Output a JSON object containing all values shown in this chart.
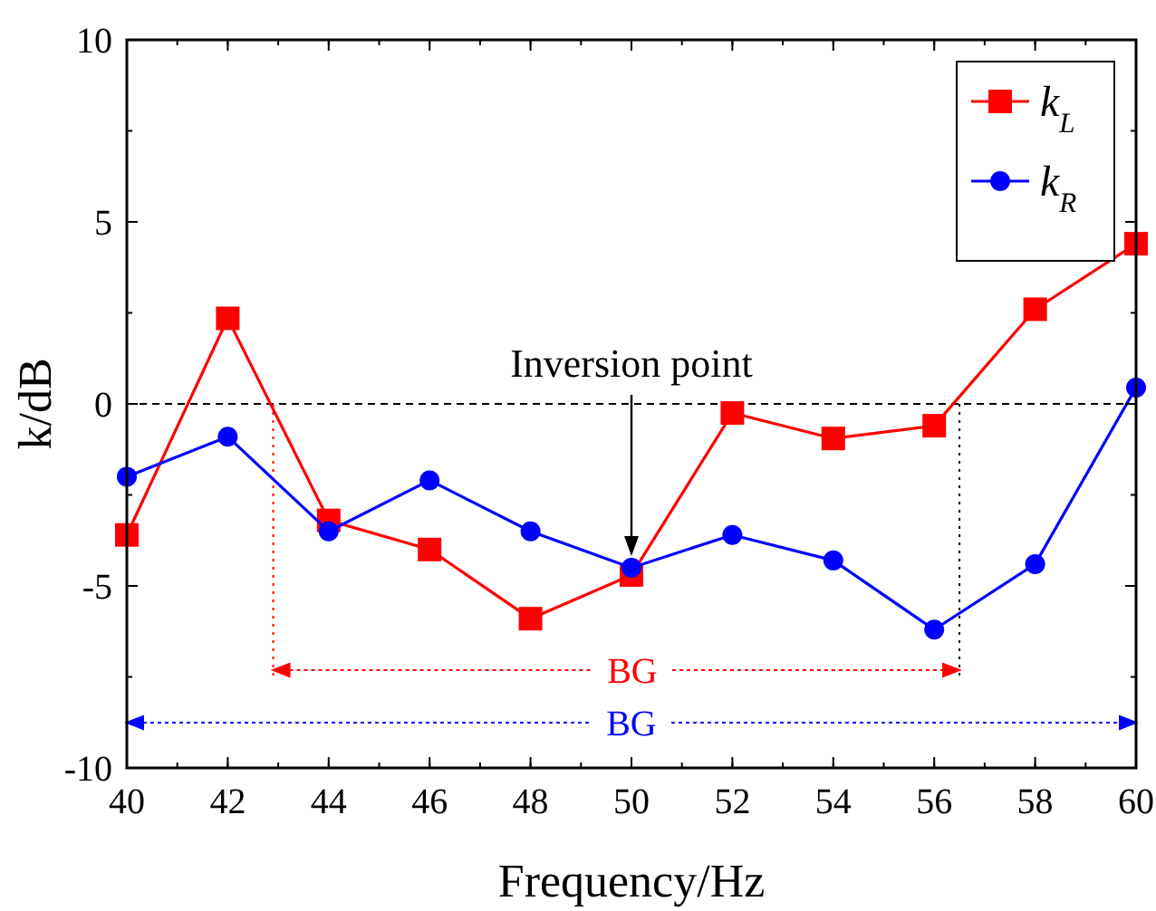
{
  "chart_data": {
    "type": "line",
    "xlabel": "Frequency/Hz",
    "ylabel": "k/dB",
    "x": [
      40,
      42,
      44,
      46,
      48,
      50,
      52,
      54,
      56,
      58,
      60
    ],
    "series": [
      {
        "name": "k$_{L}$",
        "color": "#ff0000",
        "marker": "square",
        "values": [
          -3.6,
          2.35,
          -3.2,
          -4.0,
          -5.9,
          -4.7,
          -0.25,
          -0.95,
          -0.6,
          2.6,
          4.4
        ]
      },
      {
        "name": "k$_{R}$",
        "color": "#0000ff",
        "marker": "circle",
        "values": [
          -2.0,
          -0.9,
          -3.5,
          -2.1,
          -3.5,
          -4.5,
          -3.6,
          -4.3,
          -6.2,
          -4.4,
          0.45
        ]
      }
    ],
    "xlim": [
      40,
      60
    ],
    "xticks": [
      40,
      42,
      44,
      46,
      48,
      50,
      52,
      54,
      56,
      58,
      60
    ],
    "ylim": [
      -10,
      10
    ],
    "yticks": [
      -10,
      -5,
      0,
      5,
      10
    ],
    "ref_lines": [
      {
        "axis": "y",
        "value": 0,
        "color": "#000000",
        "line_style": "dashed"
      },
      {
        "axis": "x",
        "value": 42.9,
        "color": "#ff0000",
        "line_style": "dotted"
      },
      {
        "axis": "x",
        "value": 56.5,
        "color": "#000000",
        "line_style": "dotted"
      }
    ],
    "annotations": [
      "Inversion point",
      "BG",
      "BG"
    ],
    "legend": "top right",
    "grid": false,
    "line_style": "solid"
  }
}
